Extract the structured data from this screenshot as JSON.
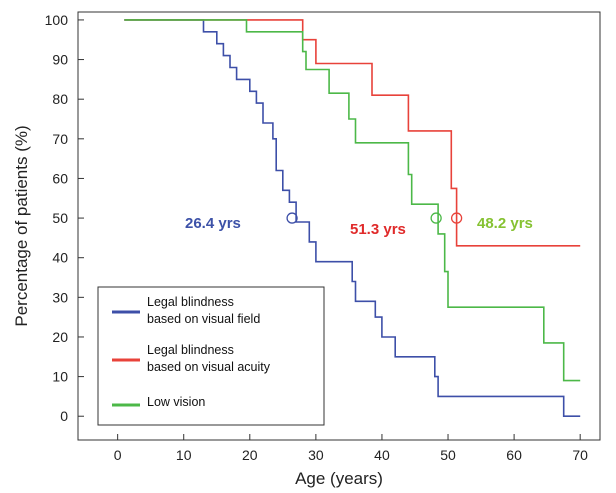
{
  "chart_data": {
    "type": "line",
    "step": true,
    "xlabel": "Age  (years)",
    "ylabel": "Percentage of patients (%)",
    "xlim": [
      -6,
      73
    ],
    "ylim": [
      -6,
      102
    ],
    "xticks": [
      0,
      10,
      20,
      30,
      40,
      50,
      60,
      70
    ],
    "yticks": [
      0,
      10,
      20,
      30,
      40,
      50,
      60,
      70,
      80,
      90,
      100
    ],
    "grid": false,
    "legend_position": "bottom-left",
    "series": [
      {
        "name": "Legal blindness based on visual field",
        "label_lines": [
          "Legal blindness",
          "based on visual field"
        ],
        "color": "#3d4fa8",
        "points": [
          [
            1,
            100
          ],
          [
            13,
            100
          ],
          [
            13,
            97
          ],
          [
            15,
            97
          ],
          [
            15,
            94
          ],
          [
            16,
            94
          ],
          [
            16,
            91
          ],
          [
            17,
            91
          ],
          [
            17,
            88
          ],
          [
            18,
            88
          ],
          [
            18,
            85
          ],
          [
            20,
            85
          ],
          [
            20,
            82
          ],
          [
            21,
            82
          ],
          [
            21,
            79
          ],
          [
            22,
            79
          ],
          [
            22,
            74
          ],
          [
            23.5,
            74
          ],
          [
            23.5,
            70
          ],
          [
            24,
            70
          ],
          [
            24,
            62
          ],
          [
            25,
            62
          ],
          [
            25,
            57
          ],
          [
            26,
            57
          ],
          [
            26,
            54
          ],
          [
            27,
            54
          ],
          [
            27,
            49
          ],
          [
            29,
            49
          ],
          [
            29,
            44
          ],
          [
            30,
            44
          ],
          [
            30,
            39
          ],
          [
            35.5,
            39
          ],
          [
            35.5,
            34
          ],
          [
            36,
            34
          ],
          [
            36,
            29
          ],
          [
            39,
            29
          ],
          [
            39,
            25
          ],
          [
            40,
            25
          ],
          [
            40,
            20
          ],
          [
            42,
            20
          ],
          [
            42,
            15
          ],
          [
            48,
            15
          ],
          [
            48,
            10
          ],
          [
            48.5,
            10
          ],
          [
            48.5,
            5
          ],
          [
            67.5,
            5
          ],
          [
            67.5,
            0
          ],
          [
            70,
            0
          ]
        ],
        "median_age": 26.4,
        "median_label": "26.4 yrs",
        "median_label_color": "#3d52a8"
      },
      {
        "name": "Legal blindness based on visual acuity",
        "label_lines": [
          "Legal blindness",
          "based on visual acuity"
        ],
        "color": "#e8423a",
        "points": [
          [
            1,
            100
          ],
          [
            28,
            100
          ],
          [
            28,
            95
          ],
          [
            30,
            95
          ],
          [
            30,
            89
          ],
          [
            38.5,
            89
          ],
          [
            38.5,
            81
          ],
          [
            44,
            81
          ],
          [
            44,
            72
          ],
          [
            50.5,
            72
          ],
          [
            50.5,
            57.5
          ],
          [
            51.3,
            57.5
          ],
          [
            51.3,
            43
          ],
          [
            70,
            43
          ]
        ],
        "median_age": 51.3,
        "median_label": "51.3 yrs",
        "median_label_color": "#e02a2a"
      },
      {
        "name": "Low vision",
        "label_lines": [
          "Low vision"
        ],
        "color": "#4cb848",
        "points": [
          [
            1,
            100
          ],
          [
            19.5,
            100
          ],
          [
            19.5,
            97
          ],
          [
            28,
            97
          ],
          [
            28,
            92
          ],
          [
            28.5,
            92
          ],
          [
            28.5,
            87.5
          ],
          [
            32,
            87.5
          ],
          [
            32,
            81.5
          ],
          [
            35,
            81.5
          ],
          [
            35,
            75
          ],
          [
            36,
            75
          ],
          [
            36,
            69
          ],
          [
            44,
            69
          ],
          [
            44,
            61
          ],
          [
            44.5,
            61
          ],
          [
            44.5,
            53.5
          ],
          [
            48.5,
            53.5
          ],
          [
            48.5,
            46
          ],
          [
            49.5,
            46
          ],
          [
            49.5,
            36.5
          ],
          [
            50,
            36.5
          ],
          [
            50,
            27.5
          ],
          [
            64.5,
            27.5
          ],
          [
            64.5,
            18.5
          ],
          [
            67.5,
            18.5
          ],
          [
            67.5,
            9
          ],
          [
            70,
            9
          ]
        ],
        "median_age": 48.2,
        "median_label": "48.2 yrs",
        "median_label_color": "#86c232"
      }
    ],
    "annotations": [
      "26.4 yrs",
      "48.2 yrs",
      "51.3 yrs"
    ]
  }
}
